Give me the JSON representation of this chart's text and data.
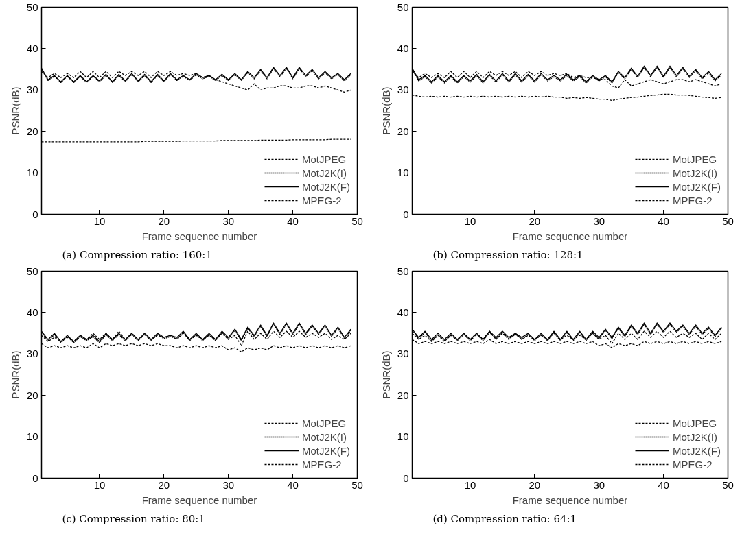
{
  "chart_data": [
    {
      "type": "line",
      "title": "(a) Compression ratio: 160:1",
      "xlabel": "Frame sequence number",
      "ylabel": "PSNR(dB)",
      "x": [
        1,
        2,
        3,
        4,
        5,
        6,
        7,
        8,
        9,
        10,
        11,
        12,
        13,
        14,
        15,
        16,
        17,
        18,
        19,
        20,
        21,
        22,
        23,
        24,
        25,
        26,
        27,
        28,
        29,
        30,
        31,
        32,
        33,
        34,
        35,
        36,
        37,
        38,
        39,
        40,
        41,
        42,
        43,
        44,
        45,
        46,
        47,
        48,
        49
      ],
      "xlim": [
        1,
        50
      ],
      "xticks": [
        10,
        20,
        30,
        40,
        50
      ],
      "ylim": [
        0,
        50
      ],
      "yticks": [
        0,
        10,
        20,
        30,
        40,
        50
      ],
      "grid": false,
      "legend": "bottom right",
      "series": [
        {
          "name": "MotJPEG",
          "color": "#000000",
          "line_style": "dashed",
          "values": [
            17.5,
            17.5,
            17.5,
            17.5,
            17.5,
            17.5,
            17.5,
            17.5,
            17.5,
            17.5,
            17.5,
            17.5,
            17.5,
            17.5,
            17.5,
            17.5,
            17.6,
            17.6,
            17.6,
            17.6,
            17.6,
            17.6,
            17.7,
            17.7,
            17.7,
            17.7,
            17.7,
            17.7,
            17.8,
            17.8,
            17.8,
            17.8,
            17.8,
            17.8,
            17.9,
            17.9,
            17.9,
            17.9,
            17.9,
            18,
            18,
            18,
            18,
            18,
            18,
            18.1,
            18.1,
            18.1,
            18.1
          ]
        },
        {
          "name": "MotJ2K(I)",
          "color": "#000000",
          "line_style": "dotted",
          "values": [
            35,
            32.3,
            33.3,
            31.8,
            33.3,
            31.8,
            33.3,
            31.8,
            33.3,
            32,
            33.5,
            31.8,
            33.5,
            32,
            33.7,
            32,
            33.5,
            31.8,
            33.5,
            32,
            33.7,
            32.3,
            33.3,
            32.3,
            33.7,
            32.7,
            33.3,
            32.3,
            33.5,
            32.3,
            33.7,
            32.3,
            34.2,
            32.7,
            34.7,
            32.7,
            35.2,
            33.2,
            35.2,
            32.7,
            35.2,
            33.2,
            34.7,
            32.7,
            34.2,
            32.7,
            33.7,
            32.2,
            33.7
          ]
        },
        {
          "name": "MotJ2K(F)",
          "color": "#000000",
          "line_style": "solid",
          "values": [
            35.3,
            32.5,
            33.5,
            32,
            33.5,
            32,
            33.5,
            32,
            33.5,
            32.2,
            33.8,
            32,
            33.8,
            32.2,
            34,
            32.2,
            33.8,
            32,
            33.8,
            32.2,
            34,
            32.5,
            33.5,
            32.5,
            34,
            33,
            33.5,
            32.5,
            33.8,
            32.5,
            34,
            32.5,
            34.5,
            33,
            35,
            33,
            35.5,
            33.5,
            35.5,
            33,
            35.5,
            33.5,
            35,
            33,
            34.5,
            33,
            34,
            32.5,
            34
          ]
        },
        {
          "name": "MPEG-2",
          "color": "#000000",
          "line_style": "dashed",
          "values": [
            34.5,
            33,
            34,
            33,
            34,
            33,
            34.5,
            33,
            34.5,
            33,
            34.5,
            33,
            34.5,
            33.5,
            34.5,
            33.5,
            34.5,
            33,
            34.5,
            33.5,
            34.5,
            33.5,
            34,
            33.5,
            34,
            33,
            33.5,
            32.5,
            32,
            31.5,
            31,
            30.5,
            30,
            31.5,
            30,
            30.5,
            30.5,
            31,
            31,
            30.5,
            30.5,
            31,
            31,
            30.5,
            31,
            30.5,
            30,
            29.5,
            30
          ]
        }
      ]
    },
    {
      "type": "line",
      "title": "(b) Compression ratio: 128:1",
      "xlabel": "Frame sequence number",
      "ylabel": "PSNR(dB)",
      "x": [
        1,
        2,
        3,
        4,
        5,
        6,
        7,
        8,
        9,
        10,
        11,
        12,
        13,
        14,
        15,
        16,
        17,
        18,
        19,
        20,
        21,
        22,
        23,
        24,
        25,
        26,
        27,
        28,
        29,
        30,
        31,
        32,
        33,
        34,
        35,
        36,
        37,
        38,
        39,
        40,
        41,
        42,
        43,
        44,
        45,
        46,
        47,
        48,
        49
      ],
      "xlim": [
        1,
        50
      ],
      "xticks": [
        10,
        20,
        30,
        40,
        50
      ],
      "ylim": [
        0,
        50
      ],
      "yticks": [
        0,
        10,
        20,
        30,
        40,
        50
      ],
      "grid": false,
      "legend": "bottom right",
      "series": [
        {
          "name": "MotJPEG",
          "color": "#000000",
          "line_style": "dashed",
          "values": [
            28.8,
            28.5,
            28.3,
            28.5,
            28.3,
            28.5,
            28.3,
            28.5,
            28.3,
            28.5,
            28.3,
            28.5,
            28.3,
            28.5,
            28.3,
            28.5,
            28.3,
            28.5,
            28.3,
            28.5,
            28.3,
            28.5,
            28.3,
            28.3,
            28,
            28.2,
            28,
            28.2,
            28,
            27.8,
            27.8,
            27.5,
            27.8,
            28,
            28.2,
            28.3,
            28.5,
            28.7,
            28.8,
            29,
            29,
            28.8,
            28.8,
            28.7,
            28.5,
            28.3,
            28.2,
            28,
            28.2
          ]
        },
        {
          "name": "MotJ2K(I)",
          "color": "#000000",
          "line_style": "dotted",
          "values": [
            35,
            32.2,
            33.2,
            31.7,
            33.2,
            31.7,
            33.2,
            31.7,
            33.2,
            31.9,
            33.5,
            31.7,
            33.5,
            31.9,
            33.7,
            31.9,
            33.7,
            31.9,
            33.5,
            31.9,
            33.7,
            32.2,
            33.2,
            32.2,
            33.5,
            32.2,
            33.2,
            31.7,
            33.2,
            32.2,
            33.2,
            31.7,
            34.2,
            32.7,
            35,
            33,
            35.5,
            33.2,
            35.5,
            33,
            35.5,
            33.2,
            35.2,
            33,
            34.7,
            32.7,
            34.2,
            32.2,
            33.7
          ]
        },
        {
          "name": "MotJ2K(F)",
          "color": "#000000",
          "line_style": "solid",
          "values": [
            35.3,
            32.5,
            33.5,
            32,
            33.5,
            32,
            33.5,
            32,
            33.5,
            32.2,
            33.8,
            32,
            33.8,
            32.2,
            34,
            32.2,
            34,
            32.2,
            33.8,
            32.2,
            34,
            32.5,
            33.5,
            32.5,
            33.8,
            32.5,
            33.5,
            32,
            33.5,
            32.5,
            33.5,
            32,
            34.5,
            33,
            35.3,
            33.3,
            35.8,
            33.5,
            35.8,
            33.3,
            35.8,
            33.5,
            35.5,
            33.3,
            35,
            33,
            34.5,
            32.5,
            34
          ]
        },
        {
          "name": "MPEG-2",
          "color": "#000000",
          "line_style": "dashed",
          "values": [
            34.5,
            33,
            34,
            33,
            34,
            33,
            34.5,
            33,
            34.5,
            33,
            34.5,
            33,
            34.5,
            33.5,
            34.5,
            33.5,
            34.5,
            33,
            34.5,
            33.5,
            34.5,
            33.5,
            34,
            33.5,
            34,
            33,
            33.5,
            33,
            33,
            32.5,
            32.5,
            31,
            30.5,
            32.5,
            31,
            31.5,
            32,
            32.5,
            32,
            31.5,
            32,
            32.5,
            32.5,
            32,
            32.5,
            32,
            31.5,
            31,
            31.5
          ]
        }
      ]
    },
    {
      "type": "line",
      "title": "(c) Compression ratio: 80:1",
      "xlabel": "Frame sequence number",
      "ylabel": "PSNR(dB)",
      "x": [
        1,
        2,
        3,
        4,
        5,
        6,
        7,
        8,
        9,
        10,
        11,
        12,
        13,
        14,
        15,
        16,
        17,
        18,
        19,
        20,
        21,
        22,
        23,
        24,
        25,
        26,
        27,
        28,
        29,
        30,
        31,
        32,
        33,
        34,
        35,
        36,
        37,
        38,
        39,
        40,
        41,
        42,
        43,
        44,
        45,
        46,
        47,
        48,
        49
      ],
      "xlim": [
        1,
        50
      ],
      "xticks": [
        10,
        20,
        30,
        40,
        50
      ],
      "ylim": [
        0,
        50
      ],
      "yticks": [
        0,
        10,
        20,
        30,
        40,
        50
      ],
      "grid": false,
      "legend": "bottom right",
      "series": [
        {
          "name": "MotJPEG",
          "color": "#000000",
          "line_style": "dashed",
          "values": [
            32.5,
            31.5,
            32,
            31.5,
            32,
            31.5,
            32,
            31.5,
            32.5,
            31.5,
            32.5,
            32,
            32.5,
            32,
            32.5,
            32,
            32.5,
            32,
            32.5,
            32,
            32,
            31.5,
            32,
            31.5,
            32,
            31.5,
            32,
            31.5,
            32,
            31,
            31.5,
            30.5,
            31.5,
            31,
            31.5,
            31,
            32,
            31.5,
            32,
            31.5,
            32,
            31.5,
            32,
            31.5,
            32,
            31.5,
            32,
            31.5,
            32
          ]
        },
        {
          "name": "MotJ2K(I)",
          "color": "#000000",
          "line_style": "dotted",
          "values": [
            35.2,
            33.2,
            34.7,
            32.7,
            34.2,
            32.7,
            34.2,
            33.2,
            34.2,
            32.7,
            34.7,
            33.2,
            34.7,
            33.2,
            34.7,
            33.2,
            34.7,
            33.2,
            34.7,
            33.7,
            34.2,
            33.7,
            35.2,
            33.2,
            34.7,
            33.2,
            34.7,
            33.2,
            35.2,
            33.7,
            35.7,
            33.2,
            36.2,
            34.2,
            36.7,
            34.2,
            37.2,
            34.7,
            37.2,
            34.7,
            37.2,
            34.7,
            36.7,
            34.7,
            36.7,
            34.2,
            36.2,
            33.7,
            35.7
          ]
        },
        {
          "name": "MotJ2K(F)",
          "color": "#000000",
          "line_style": "solid",
          "values": [
            35.5,
            33.5,
            35,
            33,
            34.5,
            33,
            34.5,
            33.5,
            34.5,
            33,
            35,
            33.5,
            35,
            33.5,
            35,
            33.5,
            35,
            33.5,
            35,
            34,
            34.5,
            34,
            35.5,
            33.5,
            35,
            33.5,
            35,
            33.5,
            35.5,
            34,
            36,
            33.5,
            36.5,
            34.5,
            37,
            34.5,
            37.5,
            35,
            37.5,
            35,
            37.5,
            35,
            37,
            35,
            37,
            34.5,
            36.5,
            34,
            36
          ]
        },
        {
          "name": "MPEG-2",
          "color": "#000000",
          "line_style": "dashed",
          "values": [
            34.5,
            33,
            34,
            33,
            34,
            33,
            34.5,
            33.5,
            35,
            33.5,
            35,
            33.5,
            35.5,
            33.5,
            35,
            33.5,
            35,
            33.5,
            34.5,
            34,
            34.5,
            33.5,
            35,
            33.5,
            34.5,
            33.5,
            34.5,
            33.5,
            35,
            33.5,
            34.5,
            32,
            35.5,
            33.5,
            35,
            33.5,
            35.5,
            34,
            35.5,
            34,
            35.5,
            34,
            35,
            34,
            35,
            33.5,
            34.5,
            33.5,
            35
          ]
        }
      ]
    },
    {
      "type": "line",
      "title": "(d) Compression ratio: 64:1",
      "xlabel": "Frame sequence number",
      "ylabel": "PSNR(dB)",
      "x": [
        1,
        2,
        3,
        4,
        5,
        6,
        7,
        8,
        9,
        10,
        11,
        12,
        13,
        14,
        15,
        16,
        17,
        18,
        19,
        20,
        21,
        22,
        23,
        24,
        25,
        26,
        27,
        28,
        29,
        30,
        31,
        32,
        33,
        34,
        35,
        36,
        37,
        38,
        39,
        40,
        41,
        42,
        43,
        44,
        45,
        46,
        47,
        48,
        49
      ],
      "xlim": [
        1,
        50
      ],
      "xticks": [
        10,
        20,
        30,
        40,
        50
      ],
      "ylim": [
        0,
        50
      ],
      "yticks": [
        0,
        10,
        20,
        30,
        40,
        50
      ],
      "grid": false,
      "legend": "bottom right",
      "series": [
        {
          "name": "MotJPEG",
          "color": "#000000",
          "line_style": "dashed",
          "values": [
            33.5,
            32.5,
            33,
            32.5,
            33,
            32.5,
            33,
            32.5,
            33,
            32.5,
            33,
            32.5,
            33.5,
            32.5,
            33,
            32.5,
            33,
            32.5,
            33,
            32.5,
            33,
            32.5,
            33,
            32.5,
            33,
            32.5,
            33,
            32.5,
            33,
            32,
            32.5,
            31.5,
            32.5,
            32,
            32.5,
            32,
            33,
            32.5,
            33,
            32.5,
            33,
            32.5,
            33,
            32.5,
            33,
            32.5,
            33,
            32.5,
            33
          ]
        },
        {
          "name": "MotJ2K(I)",
          "color": "#000000",
          "line_style": "dotted",
          "values": [
            35.7,
            33.7,
            35.2,
            33.2,
            34.7,
            33.2,
            34.7,
            33.2,
            34.7,
            33.2,
            34.7,
            33.2,
            35.2,
            33.7,
            35.2,
            33.7,
            34.7,
            33.7,
            34.7,
            33.2,
            34.7,
            33.2,
            35.2,
            33.2,
            35.2,
            33.2,
            35.2,
            33.2,
            35.2,
            33.7,
            35.7,
            33.7,
            36.2,
            34.2,
            36.7,
            34.7,
            37.2,
            34.7,
            37.2,
            35.2,
            37.2,
            35.2,
            36.7,
            34.7,
            36.7,
            34.7,
            36.2,
            34.2,
            36.2
          ]
        },
        {
          "name": "MotJ2K(F)",
          "color": "#000000",
          "line_style": "solid",
          "values": [
            36,
            34,
            35.5,
            33.5,
            35,
            33.5,
            35,
            33.5,
            35,
            33.5,
            35,
            33.5,
            35.5,
            34,
            35.5,
            34,
            35,
            34,
            35,
            33.5,
            35,
            33.5,
            35.5,
            33.5,
            35.5,
            33.5,
            35.5,
            33.5,
            35.5,
            34,
            36,
            34,
            36.5,
            34.5,
            37,
            35,
            37.5,
            35,
            37.5,
            35.5,
            37.5,
            35.5,
            37,
            35,
            37,
            35,
            36.5,
            34.5,
            36.5
          ]
        },
        {
          "name": "MPEG-2",
          "color": "#000000",
          "line_style": "dashed",
          "values": [
            35,
            33.5,
            34.5,
            33,
            34.5,
            33,
            34.5,
            33.5,
            35,
            33.5,
            35,
            33.5,
            35.5,
            33.5,
            35,
            33.5,
            35,
            33.5,
            34.5,
            33.5,
            34.5,
            33.5,
            35,
            33.5,
            34.5,
            33.5,
            34.5,
            33.5,
            35,
            33.5,
            34.5,
            32.5,
            35,
            33.5,
            35,
            33.5,
            35.5,
            34,
            35.5,
            34,
            35.5,
            34,
            35,
            34,
            35,
            33.5,
            35,
            33.5,
            35
          ]
        }
      ]
    }
  ]
}
